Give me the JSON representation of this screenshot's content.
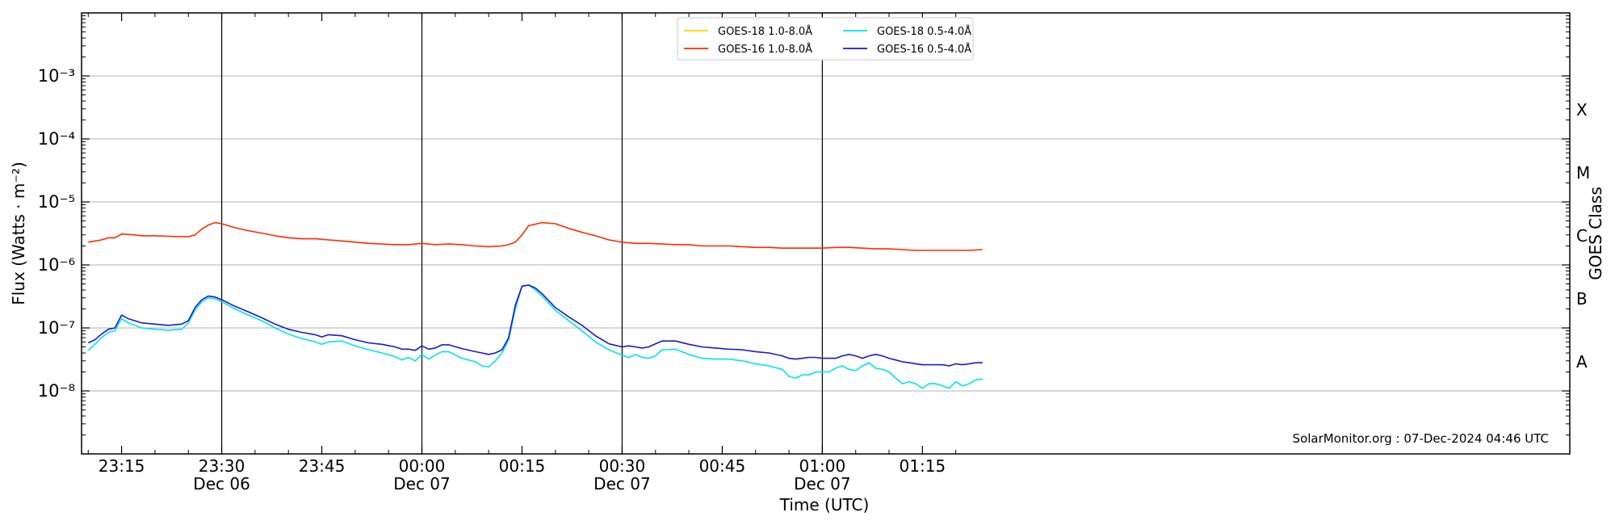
{
  "chart_data": {
    "type": "line",
    "title": "",
    "xlabel": "Time (UTC)",
    "ylabel": "Flux (Watts · m⁻²)",
    "ylabel_right": "GOES Class",
    "yscale": "log",
    "ylim": [
      1e-09,
      0.01
    ],
    "xlim_minutes_from_2310": [
      -1,
      222
    ],
    "y_ticks": [
      {
        "value": 1e-08,
        "label": "10⁻⁸"
      },
      {
        "value": 1e-07,
        "label": "10⁻⁷"
      },
      {
        "value": 1e-06,
        "label": "10⁻⁶"
      },
      {
        "value": 1e-05,
        "label": "10⁻⁵"
      },
      {
        "value": 0.0001,
        "label": "10⁻⁴"
      },
      {
        "value": 0.001,
        "label": "10⁻³"
      }
    ],
    "goes_classes": [
      {
        "value": 3e-08,
        "label": "A"
      },
      {
        "value": 3e-07,
        "label": "B"
      },
      {
        "value": 3e-06,
        "label": "C"
      },
      {
        "value": 3e-05,
        "label": "M"
      },
      {
        "value": 0.0003,
        "label": "X"
      }
    ],
    "x_ticks": [
      {
        "t": 5,
        "time": "23:15",
        "date": ""
      },
      {
        "t": 20,
        "time": "23:30",
        "date": "Dec 06"
      },
      {
        "t": 35,
        "time": "23:45",
        "date": ""
      },
      {
        "t": 50,
        "time": "00:00",
        "date": "Dec 07"
      },
      {
        "t": 65,
        "time": "00:15",
        "date": ""
      },
      {
        "t": 80,
        "time": "00:30",
        "date": "Dec 07"
      },
      {
        "t": 95,
        "time": "00:45",
        "date": ""
      },
      {
        "t": 110,
        "time": "01:00",
        "date": "Dec 07"
      },
      {
        "t": 125,
        "time": "01:15",
        "date": ""
      }
    ],
    "vertical_lines_at": [
      20,
      50,
      80,
      110
    ],
    "grid": "horizontal",
    "legend_position": "top-center",
    "annotation": "SolarMonitor.org : 07-Dec-2024 04:46 UTC",
    "series": [
      {
        "name": "GOES-18 1.0-8.0Å",
        "color": "#ffd700",
        "x": [],
        "values": []
      },
      {
        "name": "GOES-16 1.0-8.0Å",
        "color": "#ff2a00",
        "x": [
          0,
          2,
          3,
          4,
          5,
          7,
          8,
          10,
          12,
          14,
          15,
          16,
          17,
          18,
          19,
          20,
          22,
          24,
          26,
          28,
          30,
          32,
          34,
          36,
          38,
          40,
          42,
          44,
          46,
          48,
          50,
          52,
          54,
          56,
          58,
          60,
          62,
          63,
          64,
          65,
          66,
          68,
          70,
          72,
          74,
          76,
          78,
          80,
          82,
          84,
          86,
          88,
          90,
          92,
          94,
          96,
          98,
          100,
          102,
          104,
          106,
          108,
          110,
          112,
          114,
          116,
          118,
          120,
          122,
          124,
          126,
          128,
          130,
          132,
          134
        ],
        "values": [
          2.3e-06,
          2.5e-06,
          2.7e-06,
          2.7e-06,
          3.1e-06,
          3e-06,
          2.9e-06,
          2.9e-06,
          2.85e-06,
          2.8e-06,
          2.8e-06,
          3e-06,
          3.7e-06,
          4.3e-06,
          4.7e-06,
          4.5e-06,
          3.9e-06,
          3.5e-06,
          3.2e-06,
          2.9e-06,
          2.7e-06,
          2.6e-06,
          2.6e-06,
          2.5e-06,
          2.4e-06,
          2.3e-06,
          2.2e-06,
          2.15e-06,
          2.1e-06,
          2.1e-06,
          2.2e-06,
          2.1e-06,
          2.15e-06,
          2.1e-06,
          2e-06,
          1.95e-06,
          2e-06,
          2.1e-06,
          2.3e-06,
          3e-06,
          4.2e-06,
          4.7e-06,
          4.5e-06,
          3.8e-06,
          3.3e-06,
          2.9e-06,
          2.5e-06,
          2.3e-06,
          2.2e-06,
          2.2e-06,
          2.15e-06,
          2.1e-06,
          2.1e-06,
          2e-06,
          2e-06,
          2e-06,
          1.95e-06,
          1.9e-06,
          1.9e-06,
          1.85e-06,
          1.85e-06,
          1.85e-06,
          1.85e-06,
          1.9e-06,
          1.9e-06,
          1.85e-06,
          1.8e-06,
          1.8e-06,
          1.75e-06,
          1.7e-06,
          1.7e-06,
          1.7e-06,
          1.7e-06,
          1.7e-06,
          1.75e-06
        ]
      },
      {
        "name": "GOES-18 0.5-4.0Å",
        "color": "#00e5ee",
        "x": [
          0,
          1,
          2,
          3,
          4,
          5,
          6,
          7,
          8,
          10,
          12,
          14,
          15,
          16,
          17,
          18,
          19,
          20,
          22,
          24,
          26,
          28,
          30,
          32,
          34,
          35,
          36,
          38,
          40,
          42,
          44,
          46,
          47,
          48,
          49,
          50,
          51,
          52,
          53,
          54,
          56,
          58,
          59,
          60,
          61,
          62,
          63,
          64,
          65,
          66,
          67,
          68,
          70,
          72,
          74,
          76,
          78,
          80,
          81,
          82,
          83,
          84,
          85,
          86,
          87,
          88,
          90,
          92,
          94,
          96,
          98,
          100,
          102,
          104,
          105,
          106,
          107,
          108,
          109,
          110,
          111,
          112,
          113,
          114,
          115,
          116,
          117,
          118,
          119,
          120,
          121,
          122,
          123,
          124,
          125,
          126,
          127,
          128,
          129,
          130,
          131,
          132,
          133,
          134
        ],
        "values": [
          4.4e-08,
          5.5e-08,
          7e-08,
          8.5e-08,
          9e-08,
          1.4e-07,
          1.2e-07,
          1.1e-07,
          1e-07,
          9.5e-08,
          9.2e-08,
          9.5e-08,
          1.2e-07,
          1.9e-07,
          2.6e-07,
          3e-07,
          2.9e-07,
          2.6e-07,
          2e-07,
          1.6e-07,
          1.3e-07,
          1e-07,
          8e-08,
          6.8e-08,
          6e-08,
          5.5e-08,
          6e-08,
          6.2e-08,
          5.2e-08,
          4.5e-08,
          4e-08,
          3.5e-08,
          3.1e-08,
          3.4e-08,
          3e-08,
          3.8e-08,
          3.2e-08,
          3.7e-08,
          4.2e-08,
          4.2e-08,
          3.3e-08,
          2.9e-08,
          2.5e-08,
          2.4e-08,
          3e-08,
          4e-08,
          6.5e-08,
          2e-07,
          4.6e-07,
          4.8e-07,
          4e-07,
          3.2e-07,
          1.9e-07,
          1.3e-07,
          9e-08,
          6e-08,
          4.5e-08,
          3.7e-08,
          3.4e-08,
          3.8e-08,
          3.4e-08,
          3.3e-08,
          3.6e-08,
          4.5e-08,
          4.5e-08,
          4.6e-08,
          3.8e-08,
          3.3e-08,
          3.2e-08,
          3.2e-08,
          3e-08,
          2.7e-08,
          2.5e-08,
          2.2e-08,
          1.7e-08,
          1.6e-08,
          1.8e-08,
          1.8e-08,
          2e-08,
          2e-08,
          2e-08,
          2.3e-08,
          2.5e-08,
          2.2e-08,
          2.1e-08,
          2.5e-08,
          2.8e-08,
          2.3e-08,
          2.2e-08,
          2e-08,
          1.6e-08,
          1.3e-08,
          1.4e-08,
          1.3e-08,
          1.1e-08,
          1.3e-08,
          1.3e-08,
          1.2e-08,
          1.1e-08,
          1.4e-08,
          1.2e-08,
          1.3e-08,
          1.5e-08,
          1.55e-08
        ]
      },
      {
        "name": "GOES-16 0.5-4.0Å",
        "color": "#1a1acd",
        "x": [
          0,
          1,
          2,
          3,
          4,
          5,
          6,
          7,
          8,
          10,
          12,
          14,
          15,
          16,
          17,
          18,
          19,
          20,
          22,
          24,
          26,
          28,
          30,
          32,
          34,
          35,
          36,
          38,
          40,
          42,
          44,
          46,
          47,
          48,
          49,
          50,
          51,
          52,
          53,
          54,
          56,
          58,
          59,
          60,
          61,
          62,
          63,
          64,
          65,
          66,
          67,
          68,
          70,
          72,
          74,
          76,
          78,
          80,
          81,
          82,
          83,
          84,
          85,
          86,
          87,
          88,
          90,
          92,
          94,
          96,
          98,
          100,
          102,
          104,
          105,
          106,
          107,
          108,
          109,
          110,
          111,
          112,
          113,
          114,
          115,
          116,
          117,
          118,
          119,
          120,
          121,
          122,
          123,
          124,
          125,
          126,
          127,
          128,
          129,
          130,
          131,
          132,
          133,
          134
        ],
        "values": [
          5.8e-08,
          6.5e-08,
          8e-08,
          9.5e-08,
          1e-07,
          1.6e-07,
          1.4e-07,
          1.3e-07,
          1.2e-07,
          1.15e-07,
          1.1e-07,
          1.15e-07,
          1.3e-07,
          2.1e-07,
          2.8e-07,
          3.2e-07,
          3.1e-07,
          2.8e-07,
          2.2e-07,
          1.8e-07,
          1.45e-07,
          1.15e-07,
          9.5e-08,
          8.5e-08,
          7.8e-08,
          7.2e-08,
          7.8e-08,
          7.5e-08,
          6.5e-08,
          5.8e-08,
          5.5e-08,
          5e-08,
          4.6e-08,
          4.6e-08,
          4.4e-08,
          5.2e-08,
          4.6e-08,
          4.8e-08,
          5.4e-08,
          5.4e-08,
          4.7e-08,
          4.2e-08,
          4e-08,
          3.8e-08,
          4e-08,
          4.5e-08,
          7e-08,
          2.3e-07,
          4.6e-07,
          4.8e-07,
          4.3e-07,
          3.5e-07,
          2.1e-07,
          1.5e-07,
          1.1e-07,
          7.5e-08,
          5.6e-08,
          5e-08,
          5.2e-08,
          5e-08,
          4.8e-08,
          5e-08,
          5.6e-08,
          6.2e-08,
          6.2e-08,
          6.2e-08,
          5.5e-08,
          5e-08,
          4.8e-08,
          4.6e-08,
          4.5e-08,
          4.2e-08,
          4e-08,
          3.6e-08,
          3.3e-08,
          3.2e-08,
          3.3e-08,
          3.4e-08,
          3.4e-08,
          3.3e-08,
          3.3e-08,
          3.3e-08,
          3.6e-08,
          3.8e-08,
          3.6e-08,
          3.3e-08,
          3.6e-08,
          3.8e-08,
          3.6e-08,
          3.3e-08,
          3.1e-08,
          2.9e-08,
          2.8e-08,
          2.7e-08,
          2.6e-08,
          2.6e-08,
          2.6e-08,
          2.6e-08,
          2.5e-08,
          2.7e-08,
          2.6e-08,
          2.7e-08,
          2.8e-08,
          2.8e-08
        ]
      }
    ]
  }
}
